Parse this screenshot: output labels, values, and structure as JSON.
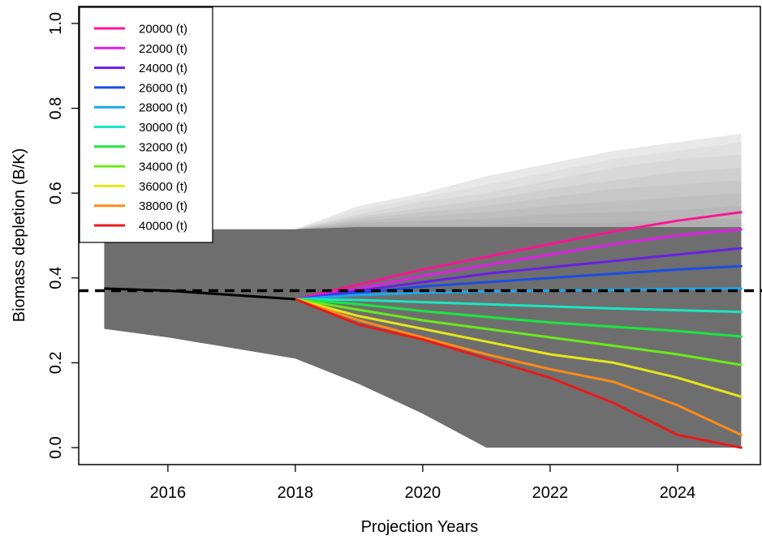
{
  "chart_data": {
    "type": "line",
    "title": "",
    "xlabel": "Projection Years",
    "ylabel": "Biomass depletion (B/K)",
    "xlim": [
      2014.6,
      2025.3
    ],
    "ylim": [
      -0.04,
      1.04
    ],
    "xticks": [
      2016,
      2018,
      2020,
      2022,
      2024
    ],
    "xtick_labels": [
      "2016",
      "2018",
      "2020",
      "2022",
      "2024"
    ],
    "yticks": [
      0.0,
      0.2,
      0.4,
      0.6,
      0.8,
      1.0
    ],
    "ytick_labels": [
      "0.0",
      "0.2",
      "0.4",
      "0.6",
      "0.8",
      "1.0"
    ],
    "reference_line": {
      "y": 0.37,
      "style": "dashed",
      "color": "#000000"
    },
    "legend_position": "top-left",
    "historical": {
      "x": [
        2015,
        2016,
        2017,
        2018
      ],
      "y": [
        0.375,
        0.37,
        0.36,
        0.35
      ],
      "color": "#000000"
    },
    "envelope_color": "#6e6e6e",
    "envelope": {
      "x": [
        2015,
        2016,
        2017,
        2018,
        2019,
        2020,
        2021,
        2022,
        2023,
        2024,
        2025
      ],
      "upper": [
        0.515,
        0.515,
        0.515,
        0.515,
        0.52,
        0.52,
        0.52,
        0.52,
        0.52,
        0.52,
        0.52
      ],
      "lower": [
        0.28,
        0.26,
        0.235,
        0.21,
        0.15,
        0.08,
        0.0,
        0.0,
        0.0,
        0.0,
        0.0
      ]
    },
    "catch_bands": {
      "x": [
        2018,
        2019,
        2020,
        2021,
        2022,
        2023,
        2024,
        2025
      ],
      "upper_by_series": [
        [
          0.515,
          0.57,
          0.6,
          0.64,
          0.67,
          0.7,
          0.72,
          0.74
        ],
        [
          0.515,
          0.56,
          0.59,
          0.62,
          0.65,
          0.68,
          0.7,
          0.72
        ],
        [
          0.515,
          0.55,
          0.58,
          0.6,
          0.63,
          0.66,
          0.68,
          0.69
        ],
        [
          0.515,
          0.545,
          0.565,
          0.585,
          0.61,
          0.63,
          0.65,
          0.66
        ],
        [
          0.515,
          0.54,
          0.555,
          0.57,
          0.59,
          0.61,
          0.62,
          0.63
        ],
        [
          0.515,
          0.535,
          0.545,
          0.555,
          0.57,
          0.58,
          0.59,
          0.6
        ],
        [
          0.515,
          0.53,
          0.535,
          0.54,
          0.55,
          0.555,
          0.56,
          0.57
        ],
        [
          0.515,
          0.525,
          0.525,
          0.525,
          0.53,
          0.53,
          0.535,
          0.54
        ],
        [
          0.515,
          0.52,
          0.515,
          0.51,
          0.51,
          0.505,
          0.505,
          0.5
        ],
        [
          0.515,
          0.515,
          0.505,
          0.495,
          0.49,
          0.48,
          0.47,
          0.465
        ],
        [
          0.515,
          0.51,
          0.495,
          0.48,
          0.465,
          0.45,
          0.44,
          0.43
        ]
      ]
    },
    "projection_x": [
      2018,
      2019,
      2020,
      2021,
      2022,
      2023,
      2024,
      2025
    ],
    "series": [
      {
        "name": "20000 (t)",
        "color": "#ff1493",
        "values": [
          0.35,
          0.385,
          0.42,
          0.45,
          0.48,
          0.51,
          0.535,
          0.555
        ]
      },
      {
        "name": "22000 (t)",
        "color": "#e01ee8",
        "values": [
          0.35,
          0.375,
          0.405,
          0.43,
          0.455,
          0.48,
          0.5,
          0.515
        ]
      },
      {
        "name": "24000 (t)",
        "color": "#6a1fe6",
        "values": [
          0.35,
          0.37,
          0.39,
          0.41,
          0.425,
          0.44,
          0.455,
          0.47
        ]
      },
      {
        "name": "26000 (t)",
        "color": "#1a4de6",
        "values": [
          0.35,
          0.365,
          0.38,
          0.39,
          0.4,
          0.41,
          0.42,
          0.428
        ]
      },
      {
        "name": "28000 (t)",
        "color": "#1aa8f0",
        "values": [
          0.35,
          0.36,
          0.365,
          0.368,
          0.37,
          0.372,
          0.374,
          0.375
        ]
      },
      {
        "name": "30000 (t)",
        "color": "#1ae6c0",
        "values": [
          0.35,
          0.348,
          0.343,
          0.338,
          0.333,
          0.328,
          0.324,
          0.32
        ]
      },
      {
        "name": "32000 (t)",
        "color": "#1ae640",
        "values": [
          0.35,
          0.338,
          0.322,
          0.308,
          0.295,
          0.285,
          0.275,
          0.262
        ]
      },
      {
        "name": "34000 (t)",
        "color": "#6aea1a",
        "values": [
          0.35,
          0.325,
          0.3,
          0.28,
          0.26,
          0.24,
          0.22,
          0.195
        ]
      },
      {
        "name": "36000 (t)",
        "color": "#e6e61a",
        "values": [
          0.35,
          0.31,
          0.28,
          0.25,
          0.22,
          0.2,
          0.165,
          0.12
        ]
      },
      {
        "name": "38000 (t)",
        "color": "#ff8a1a",
        "values": [
          0.35,
          0.3,
          0.26,
          0.22,
          0.185,
          0.155,
          0.1,
          0.03
        ]
      },
      {
        "name": "40000 (t)",
        "color": "#e81a1a",
        "values": [
          0.35,
          0.29,
          0.255,
          0.21,
          0.165,
          0.105,
          0.03,
          0.0
        ]
      }
    ]
  }
}
